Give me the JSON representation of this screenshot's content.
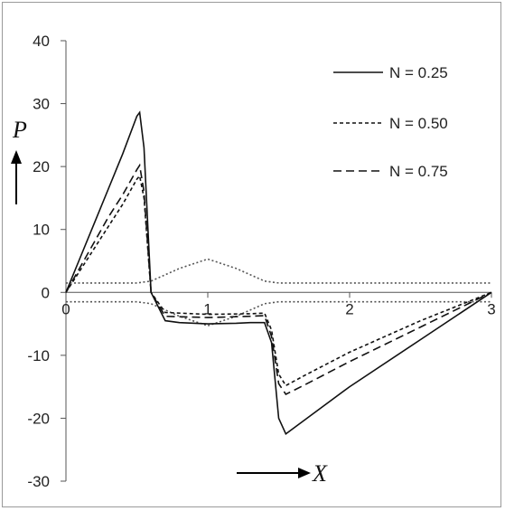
{
  "chart_data": {
    "type": "line",
    "title": "",
    "xlabel": "X",
    "ylabel": "P",
    "xlim": [
      0,
      3
    ],
    "ylim": [
      -30,
      40
    ],
    "x_ticks": [
      "0",
      "1",
      "2",
      "3"
    ],
    "y_ticks": [
      "40",
      "30",
      "20",
      "10",
      "0",
      "-10",
      "-20",
      "-30"
    ],
    "grid": false,
    "legend_position": "top-right",
    "series": [
      {
        "name": "N = 0.25",
        "style": "solid",
        "x": [
          0,
          0.1,
          0.2,
          0.3,
          0.4,
          0.5,
          0.52,
          0.55,
          0.6,
          0.7,
          0.8,
          1.0,
          1.2,
          1.3,
          1.4,
          1.45,
          1.5,
          1.55,
          1.7,
          2.0,
          2.5,
          3.0
        ],
        "y": [
          0,
          5.5,
          11,
          16.5,
          22,
          28,
          28.6,
          23,
          0,
          -4.5,
          -4.8,
          -5.0,
          -4.9,
          -4.8,
          -4.8,
          -8,
          -20,
          -22.5,
          -20,
          -15,
          -7.5,
          0
        ]
      },
      {
        "name": "N = 0.50",
        "style": "dotted",
        "x": [
          0,
          0.1,
          0.2,
          0.3,
          0.4,
          0.5,
          0.52,
          0.55,
          0.6,
          0.7,
          1.0,
          1.3,
          1.4,
          1.45,
          1.5,
          1.55,
          1.7,
          2.0,
          2.5,
          3.0
        ],
        "y": [
          0,
          3.5,
          7,
          10.5,
          14,
          18,
          18.5,
          15,
          0,
          -3.2,
          -3.5,
          -3.4,
          -3.3,
          -6,
          -13,
          -14.8,
          -13,
          -9.5,
          -4.5,
          0
        ]
      },
      {
        "name": "N = 0.75",
        "style": "dashed",
        "x": [
          0,
          0.1,
          0.2,
          0.3,
          0.4,
          0.5,
          0.52,
          0.55,
          0.6,
          0.7,
          1.0,
          1.3,
          1.4,
          1.45,
          1.5,
          1.55,
          1.7,
          2.0,
          2.5,
          3.0
        ],
        "y": [
          0,
          4,
          8,
          12,
          15.5,
          19.5,
          20.2,
          16,
          0,
          -3.8,
          -4.0,
          -3.8,
          -3.7,
          -7,
          -14.5,
          -16.2,
          -14.5,
          -11,
          -5.5,
          0
        ]
      }
    ],
    "reference_curves": [
      {
        "style": "dotted-light",
        "x": [
          0,
          0.5,
          0.6,
          0.8,
          1.0,
          1.2,
          1.4,
          1.5,
          2.0,
          2.5,
          3.0
        ],
        "y": [
          1.5,
          1.5,
          1.8,
          3.8,
          5.3,
          3.8,
          1.8,
          1.5,
          1.5,
          1.5,
          1.5
        ]
      },
      {
        "style": "dotted-light",
        "x": [
          0,
          0.5,
          0.6,
          0.8,
          1.0,
          1.2,
          1.4,
          1.5,
          2.0,
          2.5,
          3.0
        ],
        "y": [
          -1.5,
          -1.5,
          -1.8,
          -3.8,
          -5.3,
          -3.8,
          -1.8,
          -1.5,
          -1.5,
          -1.5,
          -1.5
        ]
      }
    ]
  }
}
